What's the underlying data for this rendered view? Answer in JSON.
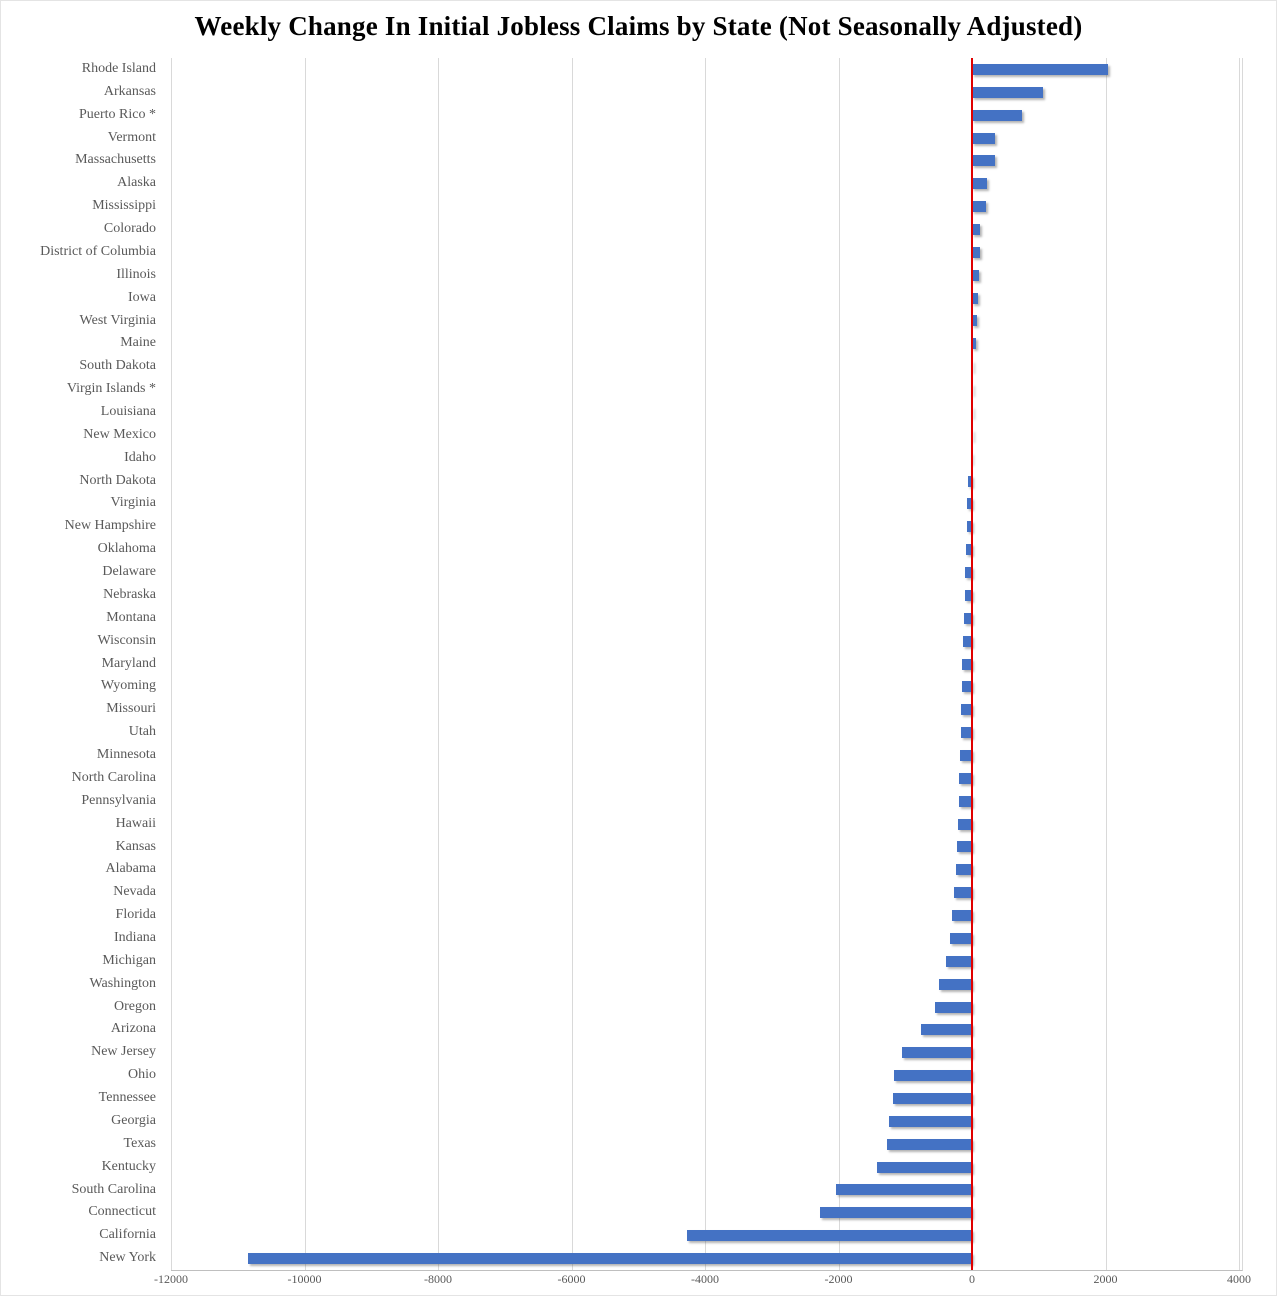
{
  "chart_data": {
    "type": "bar",
    "orientation": "horizontal",
    "title": "Weekly Change In Initial Jobless Claims by State (Not Seasonally Adjusted)",
    "categories": [
      "Rhode Island",
      "Arkansas",
      "Puerto Rico *",
      "Vermont",
      "Massachusetts",
      "Alaska",
      "Mississippi",
      "Colorado",
      "District of Columbia",
      "Illinois",
      "Iowa",
      "West Virginia",
      "Maine",
      "South Dakota",
      "Virgin Islands *",
      "Louisiana",
      "New Mexico",
      "Idaho",
      "North Dakota",
      "Virginia",
      "New Hampshire",
      "Oklahoma",
      "Delaware",
      "Nebraska",
      "Montana",
      "Wisconsin",
      "Maryland",
      "Wyoming",
      "Missouri",
      "Utah",
      "Minnesota",
      "North Carolina",
      "Pennsylvania",
      "Hawaii",
      "Kansas",
      "Alabama",
      "Nevada",
      "Florida",
      "Indiana",
      "Michigan",
      "Washington",
      "Oregon",
      "Arizona",
      "New Jersey",
      "Ohio",
      "Tennessee",
      "Georgia",
      "Texas",
      "Kentucky",
      "South Carolina",
      "Connecticut",
      "California",
      "New York"
    ],
    "values": [
      2040,
      1070,
      750,
      350,
      340,
      230,
      210,
      125,
      115,
      105,
      85,
      75,
      60,
      0,
      0,
      -2,
      -5,
      -20,
      -60,
      -70,
      -80,
      -90,
      -100,
      -110,
      -120,
      -130,
      -150,
      -155,
      -160,
      -170,
      -185,
      -195,
      -200,
      -215,
      -230,
      -245,
      -270,
      -300,
      -330,
      -390,
      -490,
      -550,
      -760,
      -1050,
      -1170,
      -1185,
      -1240,
      -1275,
      -1420,
      -2040,
      -2270,
      -4270,
      -10850
    ],
    "xlim": [
      -12000,
      4000
    ],
    "xticks": [
      -12000,
      -10000,
      -8000,
      -6000,
      -4000,
      -2000,
      0,
      2000,
      4000
    ],
    "xtick_labels": [
      "-12000",
      "-10000",
      "-8000",
      "-6000",
      "-4000",
      "-2000",
      "0",
      "2000",
      "4000"
    ],
    "grid": "vertical-gridlines-on",
    "legend": "none",
    "zero_line": true,
    "colors": {
      "bar": "#4472C4",
      "zero_line": "#E00000",
      "gridline": "#D9D9D9",
      "axis_line": "#BFBFBF",
      "label_text": "#595959",
      "title_text": "#000000",
      "background": "#FFFFFF"
    }
  }
}
